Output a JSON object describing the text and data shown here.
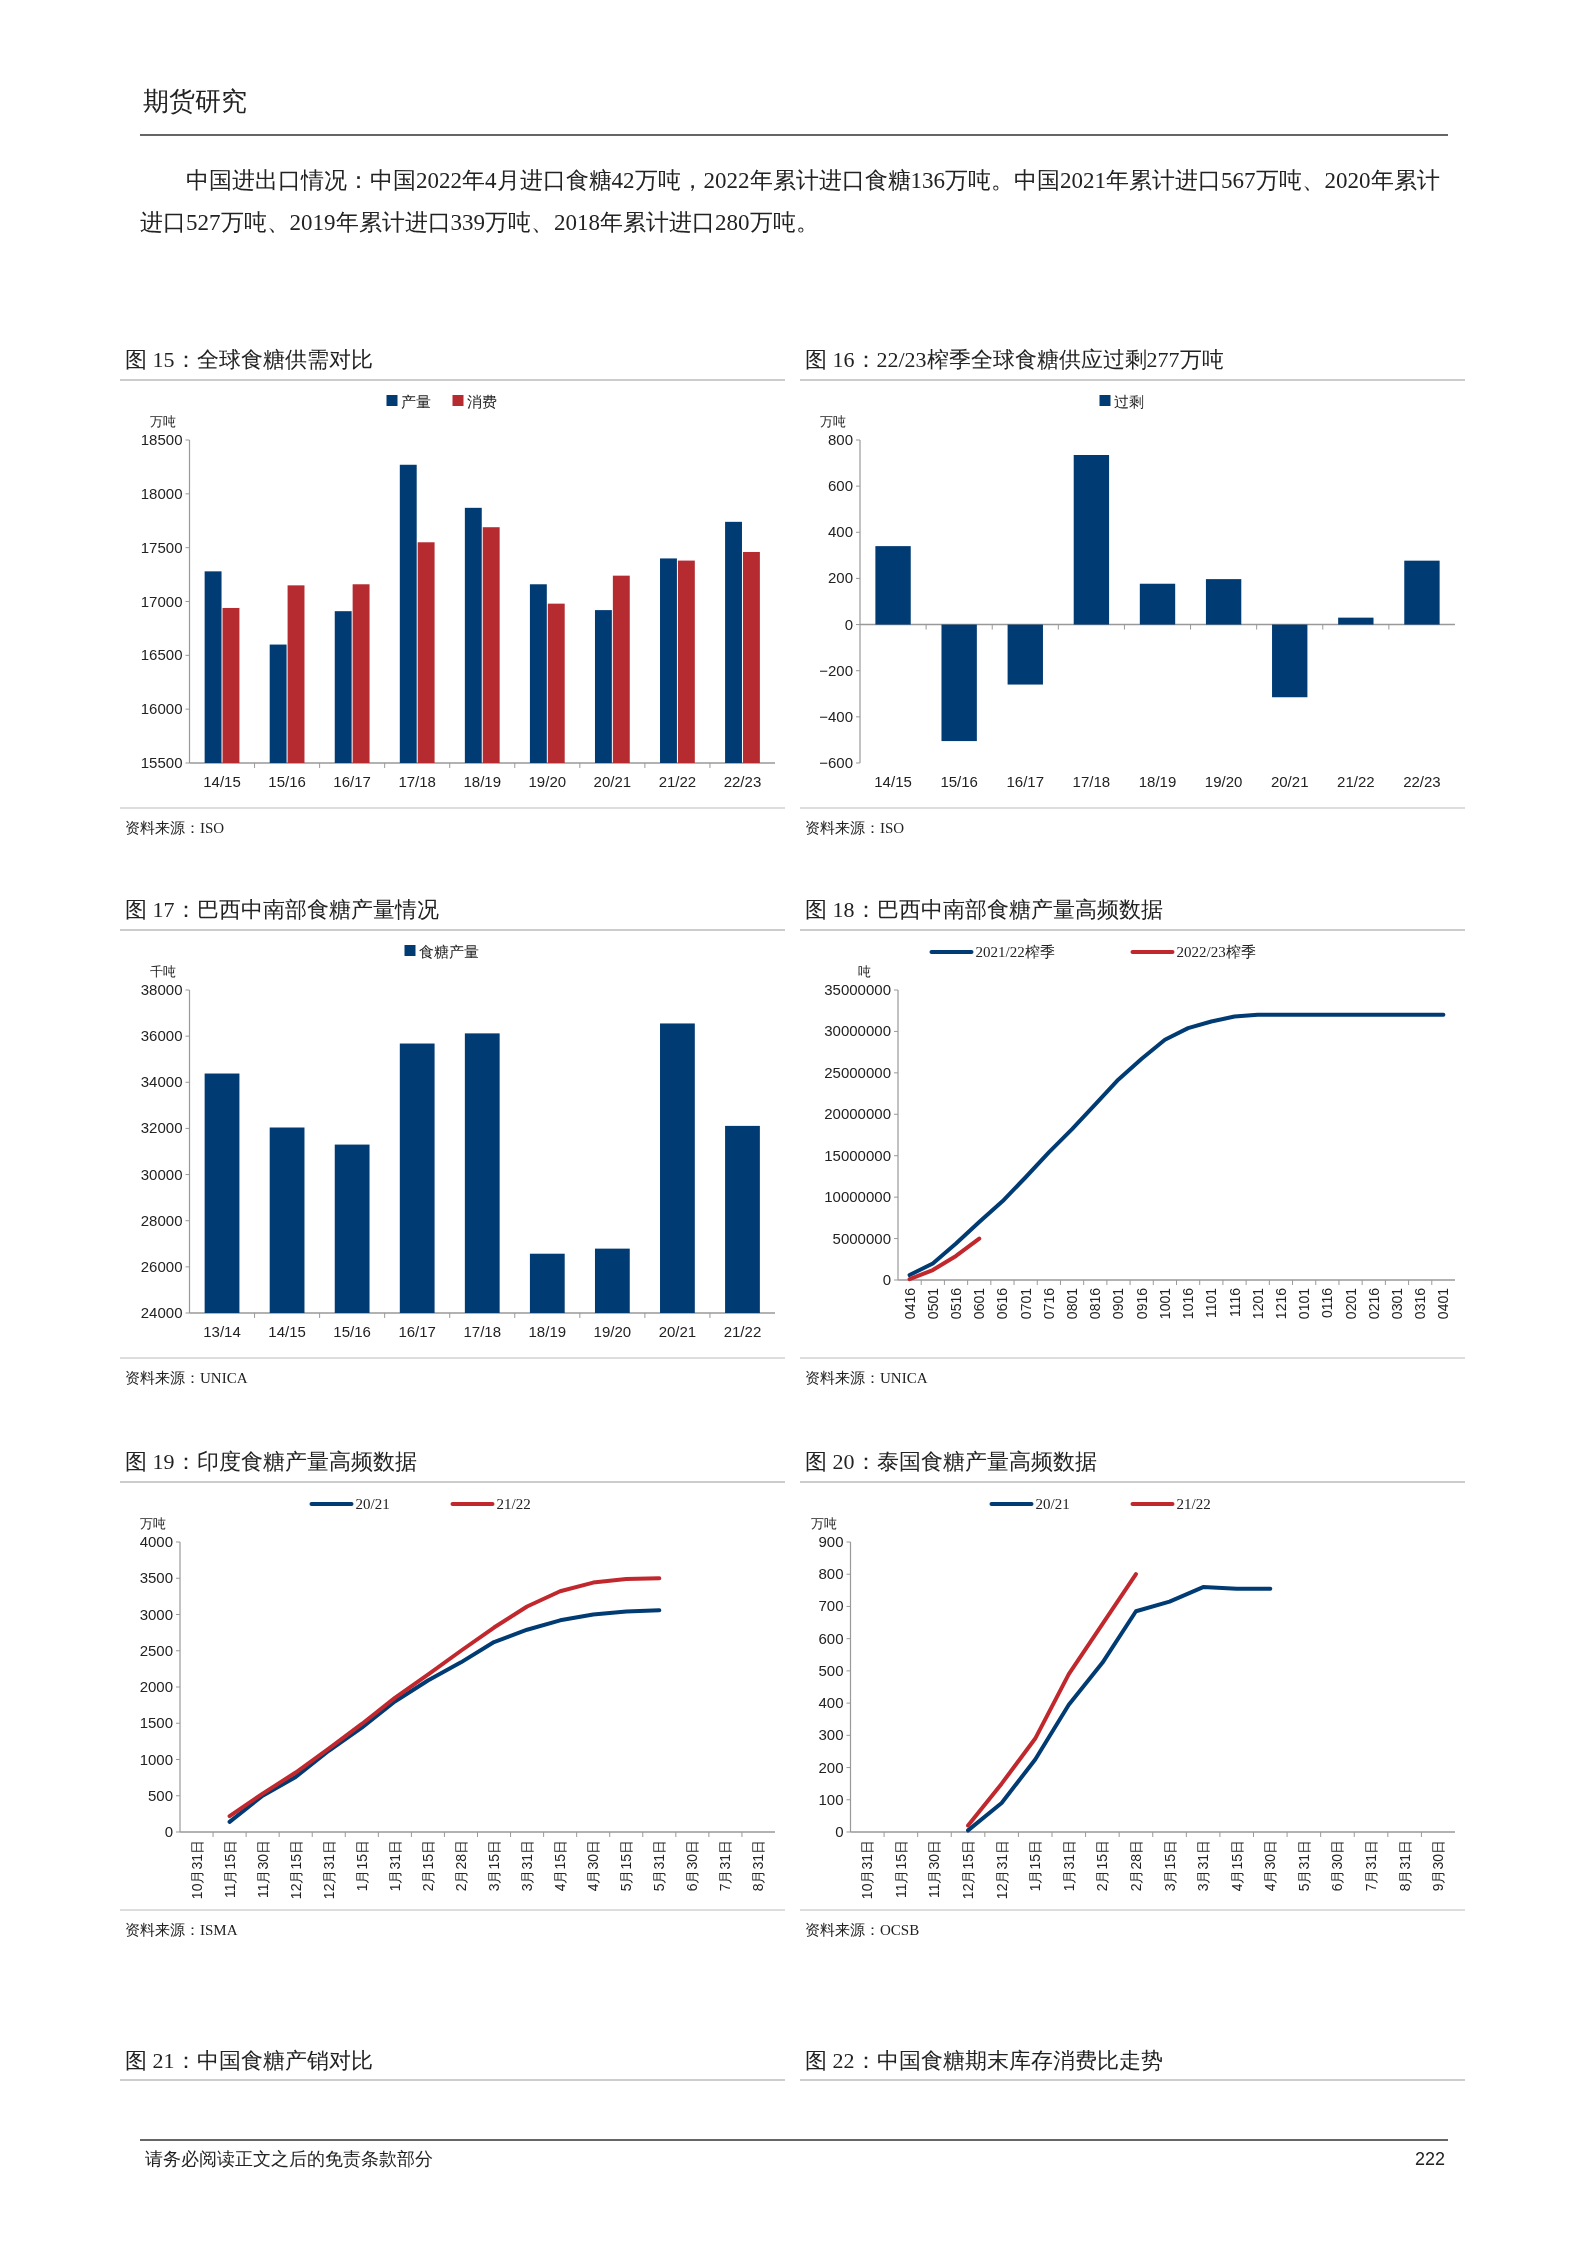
{
  "chart_data": [
    {
      "type": "other",
      "title": "期货研究",
      "annotations": [
        "中国进出口情况：中国2022年4月进口食糖42万吨，2022年累计进口食糖136万吨。中国2021年累计进口567万吨、2020年累计进口527万吨、2019年累计进口339万吨、2018年累计进口280万吨。",
        "图 21：中国食糖产销对比",
        "图 22：中国食糖期末库存消费比走势",
        "请务必阅读正文之后的免责条款部分",
        "222"
      ]
    },
    {
      "type": "bar",
      "title": "图 15：全球食糖供需对比",
      "ylabel": "万吨",
      "categories": [
        "14/15",
        "15/16",
        "16/17",
        "17/18",
        "18/19",
        "19/20",
        "20/21",
        "21/22",
        "22/23"
      ],
      "series": [
        {
          "name": "产量",
          "color": "#013b73",
          "values": [
            17280,
            16600,
            16910,
            18270,
            17870,
            17160,
            16920,
            17400,
            17740
          ]
        },
        {
          "name": "消费",
          "color": "#b52b30",
          "values": [
            16940,
            17150,
            17160,
            17550,
            17690,
            16980,
            17240,
            17380,
            17460
          ]
        }
      ],
      "ylim": [
        15500,
        18500
      ],
      "yticks": [
        15500,
        16000,
        16500,
        17000,
        17500,
        18000,
        18500
      ],
      "legend": "top",
      "annotations": [
        "资料来源：ISO"
      ]
    },
    {
      "type": "bar",
      "title": "图 16：22/23榨季全球食糖供应过剩277万吨",
      "ylabel": "万吨",
      "categories": [
        "14/15",
        "15/16",
        "16/17",
        "17/18",
        "18/19",
        "19/20",
        "20/21",
        "21/22",
        "22/23"
      ],
      "series": [
        {
          "name": "过剩",
          "color": "#013b73",
          "values": [
            340,
            -505,
            -260,
            735,
            177,
            197,
            -315,
            30,
            277
          ]
        }
      ],
      "ylim": [
        -600,
        800
      ],
      "yticks": [
        -600,
        -400,
        -200,
        0,
        200,
        400,
        600,
        800
      ],
      "legend": "top",
      "annotations": [
        "资料来源：ISO"
      ]
    },
    {
      "type": "bar",
      "title": "图 17：巴西中南部食糖产量情况",
      "ylabel": "千吨",
      "categories": [
        "13/14",
        "14/15",
        "15/16",
        "16/17",
        "17/18",
        "18/19",
        "19/20",
        "20/21",
        "21/22"
      ],
      "series": [
        {
          "name": "食糖产量",
          "color": "#013b73",
          "values": [
            34380,
            32040,
            31300,
            35680,
            36120,
            26570,
            26790,
            36550,
            32110
          ]
        }
      ],
      "ylim": [
        24000,
        38000
      ],
      "yticks": [
        24000,
        26000,
        28000,
        30000,
        32000,
        34000,
        36000,
        38000
      ],
      "legend": "top",
      "annotations": [
        "资料来源：UNICA"
      ]
    },
    {
      "type": "line",
      "title": "图 18：巴西中南部食糖产量高频数据",
      "ylabel": "吨",
      "categories": [
        "0416",
        "0501",
        "0516",
        "0601",
        "0616",
        "0701",
        "0716",
        "0801",
        "0816",
        "0901",
        "0916",
        "1001",
        "1016",
        "1101",
        "1116",
        "1201",
        "1216",
        "0101",
        "0116",
        "0201",
        "0216",
        "0301",
        "0316",
        "0401"
      ],
      "series": [
        {
          "name": "2021/22榨季",
          "color": "#013b73",
          "values": [
            600000,
            2000000,
            4400000,
            7000000,
            9500000,
            12400000,
            15400000,
            18200000,
            21200000,
            24200000,
            26700000,
            29000000,
            30400000,
            31200000,
            31800000,
            32000000,
            32000000,
            32000000,
            32000000,
            32000000,
            32000000,
            32000000,
            32000000,
            32000000
          ]
        },
        {
          "name": "2022/23榨季",
          "color": "#c0282d",
          "values": [
            100000,
            1200000,
            2900000,
            5000000,
            null,
            null,
            null,
            null,
            null,
            null,
            null,
            null,
            null,
            null,
            null,
            null,
            null,
            null,
            null,
            null,
            null,
            null,
            null,
            null
          ]
        }
      ],
      "ylim": [
        0,
        35000000
      ],
      "yticks": [
        0,
        5000000,
        10000000,
        15000000,
        20000000,
        25000000,
        30000000,
        35000000
      ],
      "legend": "top",
      "annotations": [
        "资料来源：UNICA"
      ]
    },
    {
      "type": "line",
      "title": "图 19：印度食糖产量高频数据",
      "ylabel": "万吨",
      "categories": [
        "10月31日",
        "11月15日",
        "11月30日",
        "12月15日",
        "12月31日",
        "1月15日",
        "1月31日",
        "2月15日",
        "2月28日",
        "3月15日",
        "3月31日",
        "4月15日",
        "4月30日",
        "5月15日",
        "5月31日",
        "6月30日",
        "7月31日",
        "8月31日"
      ],
      "series": [
        {
          "name": "20/21",
          "color": "#013b73",
          "values": [
            null,
            140,
            500,
            760,
            1120,
            1440,
            1800,
            2090,
            2340,
            2620,
            2790,
            2920,
            3000,
            3040,
            3060,
            null,
            null,
            null
          ]
        },
        {
          "name": "21/22",
          "color": "#c0282d",
          "values": [
            null,
            220,
            530,
            820,
            1150,
            1490,
            1850,
            2170,
            2500,
            2820,
            3110,
            3320,
            3440,
            3490,
            3500,
            null,
            null,
            null
          ]
        }
      ],
      "ylim": [
        0,
        4000
      ],
      "yticks": [
        0,
        500,
        1000,
        1500,
        2000,
        2500,
        3000,
        3500,
        4000
      ],
      "legend": "top",
      "annotations": [
        "资料来源：ISMA"
      ]
    },
    {
      "type": "line",
      "title": "图 20：泰国食糖产量高频数据",
      "ylabel": "万吨",
      "categories": [
        "10月31日",
        "11月15日",
        "11月30日",
        "12月15日",
        "12月31日",
        "1月15日",
        "1月31日",
        "2月15日",
        "2月28日",
        "3月15日",
        "3月31日",
        "4月15日",
        "4月30日",
        "5月31日",
        "6月30日",
        "7月31日",
        "8月31日",
        "9月30日"
      ],
      "series": [
        {
          "name": "20/21",
          "color": "#013b73",
          "values": [
            null,
            null,
            null,
            5,
            90,
            225,
            395,
            525,
            685,
            715,
            760,
            755,
            755,
            null,
            null,
            null,
            null,
            null
          ]
        },
        {
          "name": "21/22",
          "color": "#c0282d",
          "values": [
            null,
            null,
            null,
            20,
            150,
            290,
            490,
            645,
            800,
            null,
            null,
            null,
            null,
            null,
            null,
            null,
            null,
            null
          ]
        }
      ],
      "ylim": [
        0,
        900
      ],
      "yticks": [
        0,
        100,
        200,
        300,
        400,
        500,
        600,
        700,
        800,
        900
      ],
      "legend": "top",
      "annotations": [
        "资料来源：OCSB"
      ]
    }
  ]
}
